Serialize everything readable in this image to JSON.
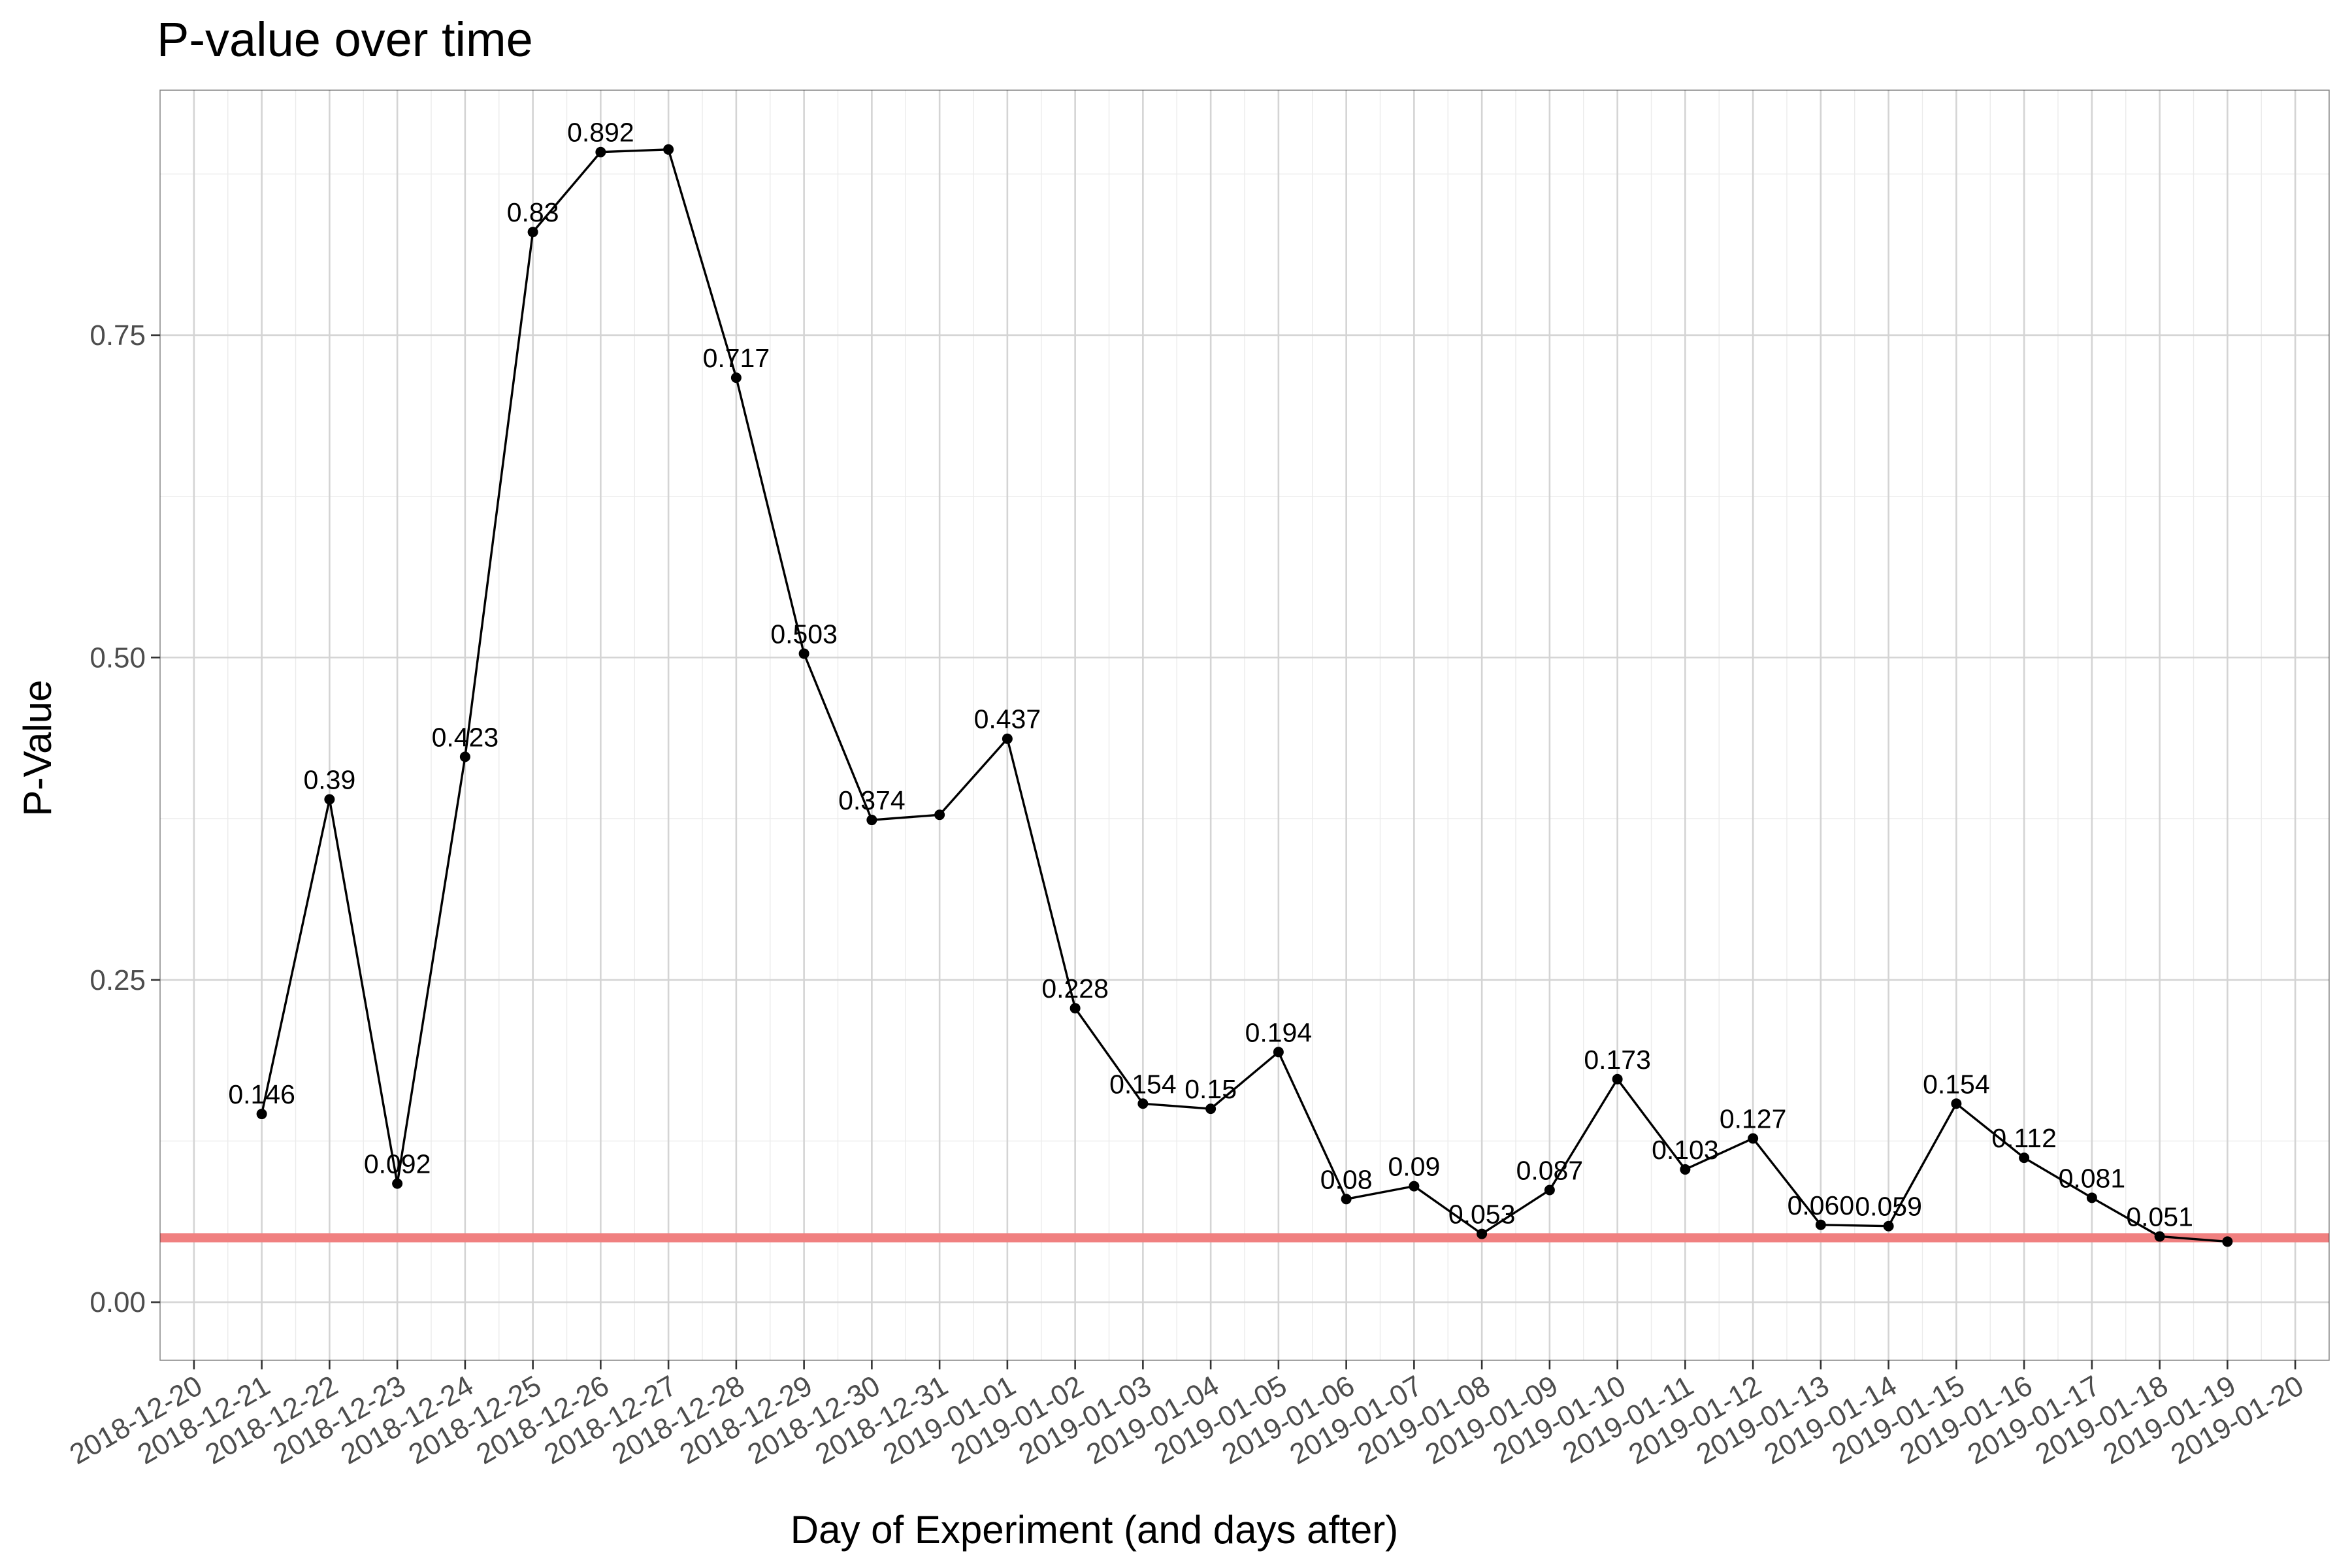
{
  "chart_data": {
    "type": "line",
    "title": "P-value over time",
    "xlabel": "Day of Experiment (and days after)",
    "ylabel": "P-Value",
    "x_ticks": [
      "2018-12-20",
      "2018-12-21",
      "2018-12-22",
      "2018-12-23",
      "2018-12-24",
      "2018-12-25",
      "2018-12-26",
      "2018-12-27",
      "2018-12-28",
      "2018-12-29",
      "2018-12-30",
      "2018-12-31",
      "2019-01-01",
      "2019-01-02",
      "2019-01-03",
      "2019-01-04",
      "2019-01-05",
      "2019-01-06",
      "2019-01-07",
      "2019-01-08",
      "2019-01-09",
      "2019-01-10",
      "2019-01-11",
      "2019-01-12",
      "2019-01-13",
      "2019-01-14",
      "2019-01-15",
      "2019-01-16",
      "2019-01-17",
      "2019-01-18",
      "2019-01-19",
      "2019-01-20"
    ],
    "y_ticks": [
      "0.00",
      "0.25",
      "0.50",
      "0.75"
    ],
    "xlim": [
      "2018-12-20",
      "2019-01-20"
    ],
    "ylim": [
      -0.045,
      0.94
    ],
    "grid": true,
    "reference_line": {
      "y": 0.05,
      "color": "#f08080"
    },
    "points": [
      {
        "x": "2018-12-21",
        "y": 0.146,
        "label": "0.146"
      },
      {
        "x": "2018-12-22",
        "y": 0.39,
        "label": "0.39"
      },
      {
        "x": "2018-12-23",
        "y": 0.092,
        "label": "0.092"
      },
      {
        "x": "2018-12-24",
        "y": 0.423,
        "label": "0.423"
      },
      {
        "x": "2018-12-25",
        "y": 0.83,
        "label": "0.83"
      },
      {
        "x": "2018-12-26",
        "y": 0.892,
        "label": "0.892"
      },
      {
        "x": "2018-12-27",
        "y": 0.894,
        "label": ""
      },
      {
        "x": "2018-12-28",
        "y": 0.717,
        "label": "0.717"
      },
      {
        "x": "2018-12-29",
        "y": 0.503,
        "label": "0.503"
      },
      {
        "x": "2018-12-30",
        "y": 0.374,
        "label": "0.374"
      },
      {
        "x": "2018-12-31",
        "y": 0.378,
        "label": ""
      },
      {
        "x": "2019-01-01",
        "y": 0.437,
        "label": "0.437"
      },
      {
        "x": "2019-01-02",
        "y": 0.228,
        "label": "0.228"
      },
      {
        "x": "2019-01-03",
        "y": 0.154,
        "label": "0.154"
      },
      {
        "x": "2019-01-04",
        "y": 0.15,
        "label": "0.15"
      },
      {
        "x": "2019-01-05",
        "y": 0.194,
        "label": "0.194"
      },
      {
        "x": "2019-01-06",
        "y": 0.08,
        "label": "0.08"
      },
      {
        "x": "2019-01-07",
        "y": 0.09,
        "label": "0.09"
      },
      {
        "x": "2019-01-08",
        "y": 0.053,
        "label": "0.053"
      },
      {
        "x": "2019-01-09",
        "y": 0.087,
        "label": "0.087"
      },
      {
        "x": "2019-01-10",
        "y": 0.173,
        "label": "0.173"
      },
      {
        "x": "2019-01-11",
        "y": 0.103,
        "label": "0.103"
      },
      {
        "x": "2019-01-12",
        "y": 0.127,
        "label": "0.127"
      },
      {
        "x": "2019-01-13",
        "y": 0.06,
        "label": "0.060"
      },
      {
        "x": "2019-01-14",
        "y": 0.059,
        "label": "0.059"
      },
      {
        "x": "2019-01-15",
        "y": 0.154,
        "label": "0.154"
      },
      {
        "x": "2019-01-16",
        "y": 0.112,
        "label": "0.112"
      },
      {
        "x": "2019-01-17",
        "y": 0.081,
        "label": "0.081"
      },
      {
        "x": "2019-01-18",
        "y": 0.051,
        "label": "0.051"
      },
      {
        "x": "2019-01-19",
        "y": 0.047,
        "label": ""
      }
    ]
  }
}
